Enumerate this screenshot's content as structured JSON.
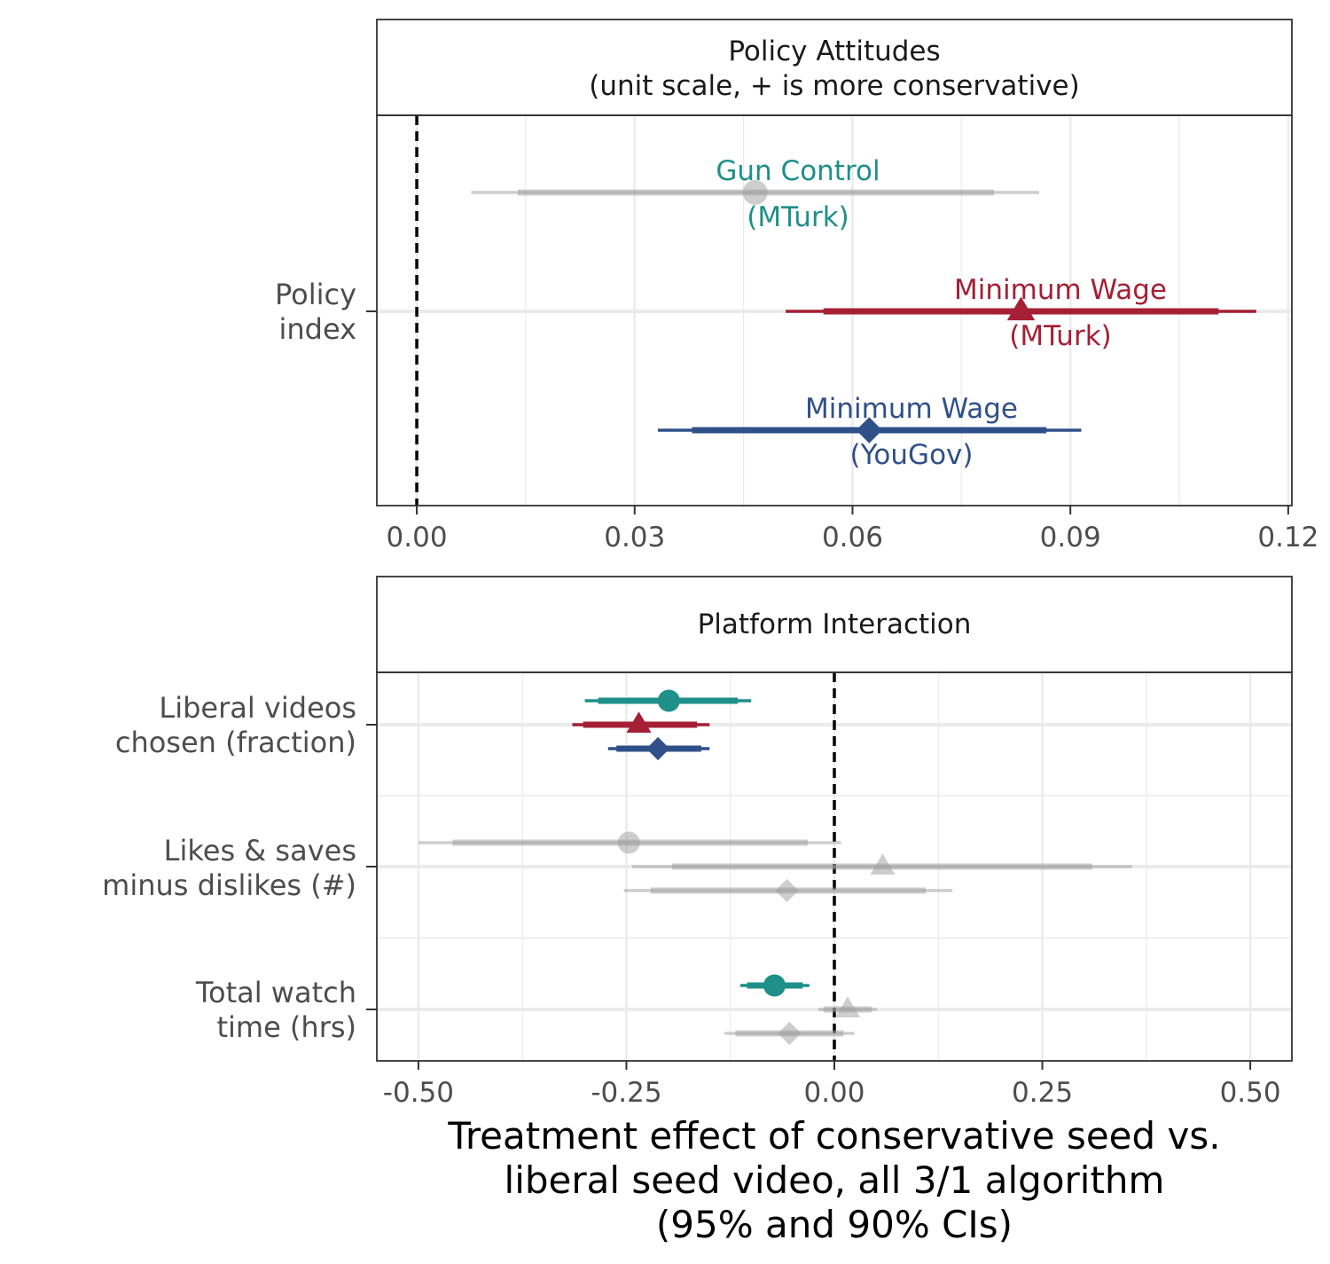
{
  "colors": {
    "gun_control_mturk": "#1F8F8A",
    "min_wage_mturk": "#A51F35",
    "min_wage_yougov": "#2F5089",
    "nonsignificant": "#9E9E9E",
    "grid": "#EBEBEB",
    "strip_border": "#333333"
  },
  "x_axis_title": {
    "line1": "Treatment effect of conservative seed vs.",
    "line2": "liberal seed video, all 3/1 algorithm",
    "line3": "(95% and 90% CIs)"
  },
  "chart_data": [
    {
      "type": "scatter",
      "panel": "policy",
      "title": {
        "line1": "Policy Attitudes",
        "line2": "(unit scale, + is more conservative)"
      },
      "xlim": [
        -0.0055,
        0.1205
      ],
      "xticks": [
        0.0,
        0.03,
        0.06,
        0.09,
        0.12
      ],
      "xtick_labels": [
        "0.00",
        "0.03",
        "0.06",
        "0.09",
        "0.12"
      ],
      "reference_line": 0.0,
      "categories": [
        {
          "line1": "Policy",
          "line2": "index"
        }
      ],
      "series": [
        {
          "name": "Gun Control (MTurk)",
          "shape": "circle",
          "significant": false,
          "category": 0,
          "offset": 1,
          "estimate": 0.0466,
          "ci95": [
            0.0075,
            0.0857
          ],
          "ci90": [
            0.0139,
            0.0795
          ],
          "label": {
            "line1": "Gun Control",
            "line2": "(MTurk)"
          }
        },
        {
          "name": "Minimum Wage (MTurk)",
          "shape": "triangle",
          "significant": true,
          "category": 0,
          "offset": 0,
          "estimate": 0.0832,
          "ci95": [
            0.0508,
            0.1156
          ],
          "ci90": [
            0.056,
            0.1104
          ],
          "label": {
            "line1": "Minimum Wage",
            "line2": "(MTurk)"
          }
        },
        {
          "name": "Minimum Wage (YouGov)",
          "shape": "diamond",
          "significant": true,
          "category": 0,
          "offset": -1,
          "estimate": 0.0623,
          "ci95": [
            0.0332,
            0.0915
          ],
          "ci90": [
            0.0379,
            0.0867
          ],
          "label": {
            "line1": "Minimum Wage",
            "line2": "(YouGov)"
          }
        }
      ]
    },
    {
      "type": "scatter",
      "panel": "platform",
      "title": {
        "line1": "Platform Interaction"
      },
      "xlim": [
        -0.55,
        0.55
      ],
      "xticks": [
        -0.5,
        -0.25,
        0.0,
        0.25,
        0.5
      ],
      "xtick_labels": [
        "-0.50",
        "-0.25",
        "0.00",
        "0.25",
        "0.50"
      ],
      "reference_line": 0.0,
      "categories": [
        {
          "line1": "Liberal videos",
          "line2": "chosen (fraction)"
        },
        {
          "line1": "Likes & saves",
          "line2": "minus dislikes (#)"
        },
        {
          "line1": "Total watch",
          "line2": "time (hrs)"
        }
      ],
      "series": [
        {
          "name": "Gun Control (MTurk)",
          "shape": "circle",
          "category": 0,
          "offset": 1,
          "significant": true,
          "estimate": -0.199,
          "ci95": [
            -0.3,
            -0.1
          ],
          "ci90": [
            -0.284,
            -0.116
          ]
        },
        {
          "name": "Minimum Wage (MTurk)",
          "shape": "triangle",
          "category": 0,
          "offset": 0,
          "significant": true,
          "estimate": -0.235,
          "ci95": [
            -0.315,
            -0.15
          ],
          "ci90": [
            -0.302,
            -0.165
          ]
        },
        {
          "name": "Minimum Wage (YouGov)",
          "shape": "diamond",
          "category": 0,
          "offset": -1,
          "significant": true,
          "estimate": -0.212,
          "ci95": [
            -0.272,
            -0.15
          ],
          "ci90": [
            -0.262,
            -0.16
          ]
        },
        {
          "name": "Gun Control (MTurk)",
          "shape": "circle",
          "category": 1,
          "offset": 1,
          "significant": false,
          "estimate": -0.247,
          "ci95": [
            -0.5,
            0.008
          ],
          "ci90": [
            -0.459,
            -0.032
          ]
        },
        {
          "name": "Minimum Wage (MTurk)",
          "shape": "triangle",
          "category": 1,
          "offset": 0,
          "significant": false,
          "estimate": 0.058,
          "ci95": [
            -0.243,
            0.358
          ],
          "ci90": [
            -0.195,
            0.31
          ]
        },
        {
          "name": "Minimum Wage (YouGov)",
          "shape": "diamond",
          "category": 1,
          "offset": -1,
          "significant": false,
          "estimate": -0.057,
          "ci95": [
            -0.253,
            0.142
          ],
          "ci90": [
            -0.221,
            0.11
          ]
        },
        {
          "name": "Gun Control (MTurk)",
          "shape": "circle",
          "category": 2,
          "offset": 1,
          "significant": true,
          "estimate": -0.072,
          "ci95": [
            -0.113,
            -0.03
          ],
          "ci90": [
            -0.105,
            -0.038
          ]
        },
        {
          "name": "Minimum Wage (MTurk)",
          "shape": "triangle",
          "category": 2,
          "offset": 0,
          "significant": false,
          "estimate": 0.016,
          "ci95": [
            -0.019,
            0.051
          ],
          "ci90": [
            -0.013,
            0.045
          ]
        },
        {
          "name": "Minimum Wage (YouGov)",
          "shape": "diamond",
          "category": 2,
          "offset": -1,
          "significant": false,
          "estimate": -0.054,
          "ci95": [
            -0.132,
            0.024
          ],
          "ci90": [
            -0.119,
            0.011
          ]
        }
      ]
    }
  ]
}
